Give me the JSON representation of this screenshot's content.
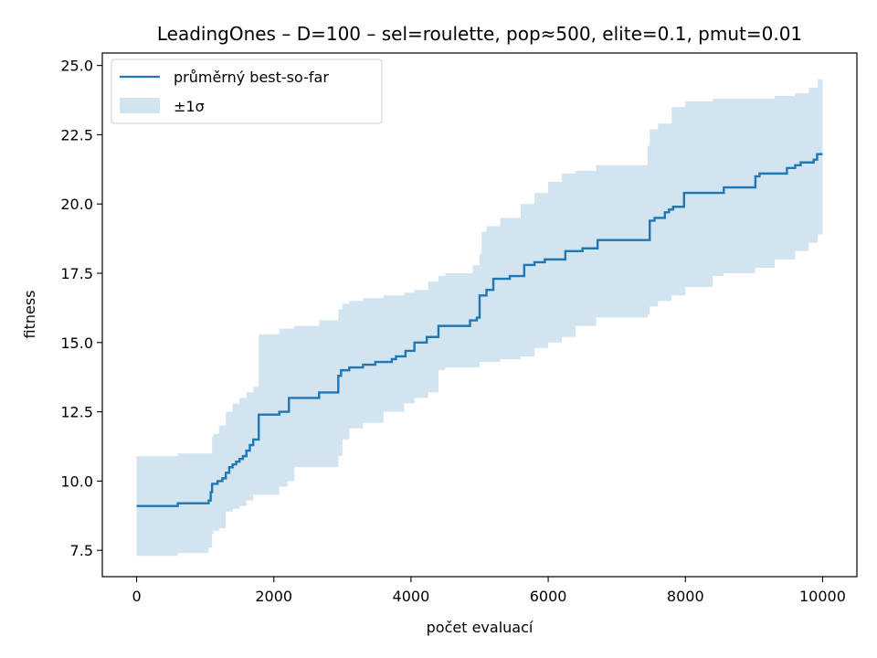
{
  "chart_data": {
    "type": "line",
    "title": "LeadingOnes – D=100 – sel=roulette, pop≈500, elite=0.1, pmut=0.01",
    "xlabel": "počet evaluací",
    "ylabel": "fitness",
    "xlim": [
      -500,
      10500
    ],
    "ylim": [
      6.55,
      25.45
    ],
    "xticks": [
      0,
      2000,
      4000,
      6000,
      8000,
      10000
    ],
    "xtick_labels": [
      "0",
      "2000",
      "4000",
      "6000",
      "8000",
      "10000"
    ],
    "yticks": [
      7.5,
      10.0,
      12.5,
      15.0,
      17.5,
      20.0,
      22.5,
      25.0
    ],
    "ytick_labels": [
      "7.5",
      "10.0",
      "12.5",
      "15.0",
      "17.5",
      "20.0",
      "22.5",
      "25.0"
    ],
    "grid": false,
    "legend_position": "upper left",
    "series": [
      {
        "name": "průměrný best-so-far",
        "color": "#1f77b4",
        "step": true,
        "x": [
          0,
          600,
          1050,
          1080,
          1100,
          1120,
          1180,
          1250,
          1300,
          1350,
          1400,
          1450,
          1500,
          1550,
          1600,
          1650,
          1700,
          1780,
          2080,
          2220,
          2660,
          2940,
          2980,
          3100,
          3300,
          3480,
          3720,
          3780,
          3920,
          4050,
          4230,
          4400,
          4500,
          4860,
          4960,
          5000,
          5100,
          5150,
          5200,
          5250,
          5440,
          5650,
          5800,
          5950,
          6030,
          6250,
          6500,
          6720,
          7480,
          7550,
          7700,
          7760,
          7820,
          7980,
          8560,
          9020,
          9080,
          9400,
          9480,
          9530,
          9600,
          9680,
          9750,
          9870,
          9920,
          10000
        ],
        "y": [
          9.1,
          9.2,
          9.3,
          9.6,
          9.9,
          9.9,
          10.0,
          10.1,
          10.3,
          10.5,
          10.6,
          10.7,
          10.8,
          10.9,
          11.1,
          11.3,
          11.5,
          12.4,
          12.5,
          13.0,
          13.2,
          13.8,
          14.0,
          14.1,
          14.2,
          14.3,
          14.4,
          14.5,
          14.7,
          15.0,
          15.2,
          15.6,
          15.6,
          15.8,
          15.9,
          16.7,
          16.9,
          16.9,
          17.3,
          17.3,
          17.4,
          17.8,
          17.9,
          18.0,
          18.0,
          18.3,
          18.4,
          18.7,
          19.4,
          19.5,
          19.7,
          19.8,
          19.9,
          20.4,
          20.6,
          21.0,
          21.1,
          21.1,
          21.3,
          21.3,
          21.4,
          21.5,
          21.5,
          21.6,
          21.8,
          21.8
        ]
      },
      {
        "name": "±1σ",
        "color": "#1f77b4",
        "alpha": 0.2,
        "step": true,
        "x": [
          0,
          600,
          1050,
          1100,
          1120,
          1200,
          1300,
          1400,
          1500,
          1600,
          1700,
          1780,
          2080,
          2200,
          2300,
          2660,
          2940,
          3000,
          3100,
          3300,
          3600,
          3900,
          4050,
          4250,
          4400,
          4500,
          4900,
          5000,
          5030,
          5100,
          5300,
          5600,
          5800,
          6000,
          6200,
          6400,
          6700,
          7450,
          7480,
          7600,
          7800,
          8000,
          8400,
          8560,
          9020,
          9300,
          9600,
          9800,
          9930,
          10000
        ],
        "lower": [
          7.3,
          7.4,
          7.6,
          8.1,
          8.2,
          8.3,
          8.9,
          9.0,
          9.1,
          9.3,
          9.5,
          9.5,
          9.8,
          10.0,
          10.5,
          10.5,
          10.9,
          11.5,
          11.9,
          12.1,
          12.5,
          12.8,
          13.0,
          13.2,
          14.0,
          14.1,
          14.1,
          14.3,
          14.3,
          14.3,
          14.4,
          14.5,
          14.8,
          15.0,
          15.2,
          15.6,
          15.9,
          16.0,
          16.3,
          16.5,
          16.7,
          17.0,
          17.4,
          17.5,
          17.7,
          18.0,
          18.3,
          18.6,
          18.9,
          18.9
        ],
        "upper": [
          10.9,
          11.0,
          11.0,
          11.6,
          11.7,
          12.0,
          12.5,
          12.8,
          13.0,
          13.2,
          13.4,
          15.3,
          15.5,
          15.5,
          15.6,
          15.8,
          16.2,
          16.4,
          16.5,
          16.6,
          16.7,
          16.8,
          16.9,
          17.2,
          17.4,
          17.5,
          17.8,
          18.2,
          19.0,
          19.2,
          19.5,
          20.0,
          20.4,
          20.8,
          21.1,
          21.2,
          21.4,
          22.1,
          22.7,
          22.9,
          23.5,
          23.7,
          23.8,
          23.8,
          23.8,
          23.9,
          24.0,
          24.2,
          24.5,
          24.7
        ]
      }
    ]
  }
}
